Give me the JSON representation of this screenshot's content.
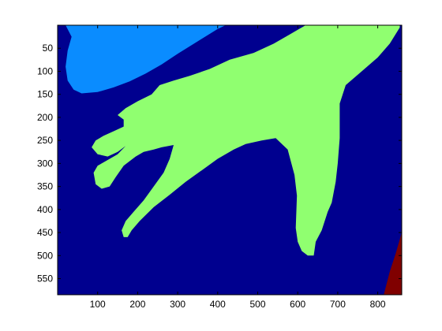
{
  "chart_data": {
    "type": "heatmap",
    "title": "",
    "xlabel": "",
    "ylabel": "",
    "xlim": [
      0,
      860
    ],
    "ylim": [
      585,
      0
    ],
    "y_direction": "down",
    "grid": false,
    "legend": "none",
    "xticks": [
      100,
      200,
      300,
      400,
      500,
      600,
      700,
      800
    ],
    "yticks": [
      50,
      100,
      150,
      200,
      250,
      300,
      350,
      400,
      450,
      500,
      550
    ],
    "colors": {
      "background": "#00008F",
      "region_light_blue": "#0A8CFF",
      "region_green": "#90FF70",
      "region_dark_red": "#800000"
    },
    "regions": [
      {
        "label": "",
        "color": "#0A8CFF",
        "polygon": [
          [
            20,
            0
          ],
          [
            420,
            0
          ],
          [
            400,
            8
          ],
          [
            350,
            35
          ],
          [
            300,
            62
          ],
          [
            260,
            85
          ],
          [
            220,
            105
          ],
          [
            180,
            122
          ],
          [
            140,
            135
          ],
          [
            100,
            145
          ],
          [
            60,
            148
          ],
          [
            40,
            140
          ],
          [
            25,
            120
          ],
          [
            20,
            90
          ],
          [
            25,
            55
          ],
          [
            35,
            25
          ]
        ]
      },
      {
        "label": "",
        "color": "#90FF70",
        "polygon": [
          [
            620,
            0
          ],
          [
            855,
            0
          ],
          [
            855,
            5
          ],
          [
            830,
            40
          ],
          [
            800,
            70
          ],
          [
            760,
            100
          ],
          [
            720,
            130
          ],
          [
            705,
            170
          ],
          [
            705,
            245
          ],
          [
            700,
            300
          ],
          [
            695,
            340
          ],
          [
            685,
            385
          ],
          [
            675,
            405
          ],
          [
            660,
            445
          ],
          [
            645,
            470
          ],
          [
            640,
            500
          ],
          [
            625,
            500
          ],
          [
            610,
            490
          ],
          [
            600,
            470
          ],
          [
            595,
            440
          ],
          [
            598,
            370
          ],
          [
            592,
            325
          ],
          [
            575,
            270
          ],
          [
            545,
            245
          ],
          [
            510,
            250
          ],
          [
            470,
            258
          ],
          [
            440,
            270
          ],
          [
            400,
            290
          ],
          [
            360,
            315
          ],
          [
            320,
            340
          ],
          [
            280,
            368
          ],
          [
            240,
            395
          ],
          [
            205,
            425
          ],
          [
            185,
            445
          ],
          [
            175,
            460
          ],
          [
            165,
            460
          ],
          [
            160,
            445
          ],
          [
            170,
            425
          ],
          [
            190,
            405
          ],
          [
            215,
            380
          ],
          [
            240,
            350
          ],
          [
            265,
            320
          ],
          [
            280,
            290
          ],
          [
            290,
            260
          ],
          [
            260,
            265
          ],
          [
            240,
            270
          ],
          [
            215,
            275
          ],
          [
            195,
            285
          ],
          [
            165,
            305
          ],
          [
            145,
            330
          ],
          [
            130,
            350
          ],
          [
            110,
            355
          ],
          [
            95,
            345
          ],
          [
            90,
            320
          ],
          [
            100,
            305
          ],
          [
            120,
            295
          ],
          [
            150,
            280
          ],
          [
            170,
            262
          ],
          [
            150,
            275
          ],
          [
            125,
            285
          ],
          [
            100,
            280
          ],
          [
            85,
            265
          ],
          [
            95,
            250
          ],
          [
            115,
            240
          ],
          [
            140,
            230
          ],
          [
            165,
            220
          ],
          [
            165,
            205
          ],
          [
            150,
            195
          ],
          [
            170,
            180
          ],
          [
            200,
            165
          ],
          [
            235,
            150
          ],
          [
            255,
            130
          ],
          [
            290,
            120
          ],
          [
            330,
            110
          ],
          [
            380,
            95
          ],
          [
            430,
            75
          ],
          [
            490,
            60
          ],
          [
            540,
            40
          ],
          [
            580,
            20
          ]
        ]
      },
      {
        "label": "",
        "color": "#800000",
        "polygon": [
          [
            815,
            585
          ],
          [
            860,
            585
          ],
          [
            860,
            450
          ],
          [
            845,
            495
          ],
          [
            830,
            535
          ]
        ]
      }
    ]
  }
}
